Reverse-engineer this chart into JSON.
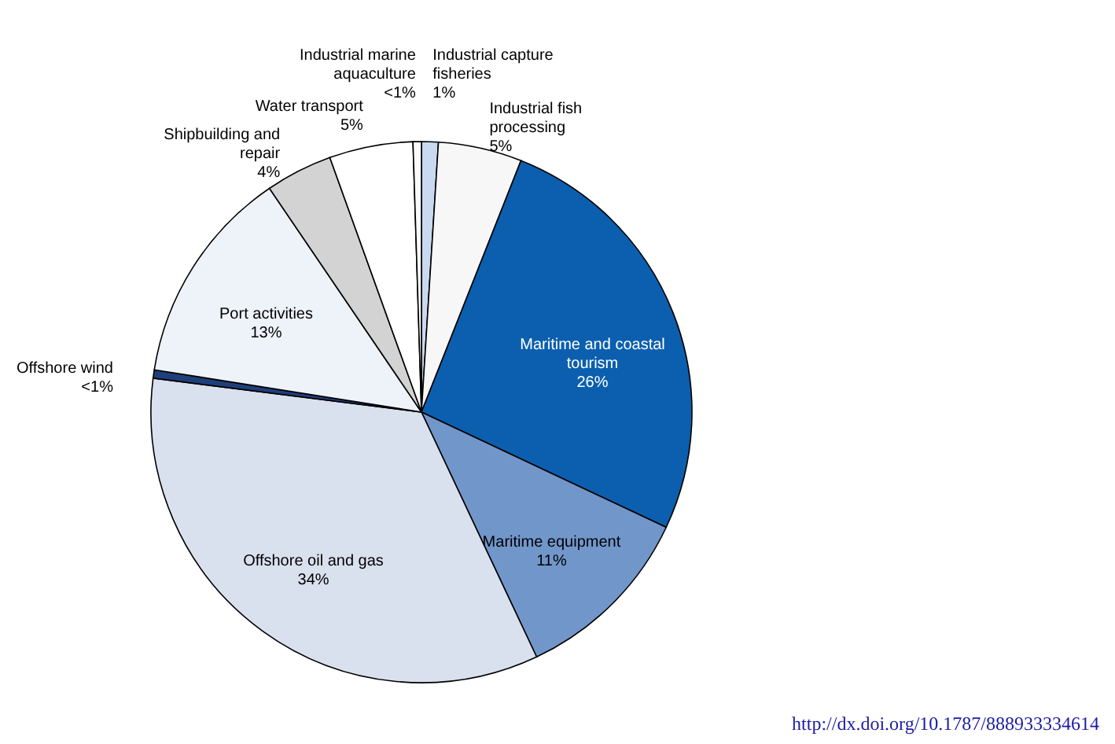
{
  "chart_data": {
    "type": "pie",
    "categories": [
      "Industrial capture fisheries",
      "Industrial fish processing",
      "Maritime and coastal tourism",
      "Maritime equipment",
      "Offshore oil and gas",
      "Offshore wind",
      "Port activities",
      "Shipbuilding and repair",
      "Water transport",
      "Industrial marine aquaculture"
    ],
    "values": [
      1,
      5,
      26,
      11,
      34,
      0.5,
      13,
      4,
      5,
      0.5
    ],
    "value_labels": [
      "1%",
      "5%",
      "26%",
      "11%",
      "34%",
      "<1%",
      "13%",
      "4%",
      "5%",
      "<1%"
    ],
    "colors": [
      "#c9d9ef",
      "#f7f7f7",
      "#0b5fae",
      "#7196ca",
      "#d9e0ee",
      "#1f3f7a",
      "#eef2f9",
      "#d3d3d3",
      "#ffffff",
      "#fafafa"
    ],
    "annotations": [
      "http://dx.doi.org/10.1787/888933334614"
    ]
  }
}
